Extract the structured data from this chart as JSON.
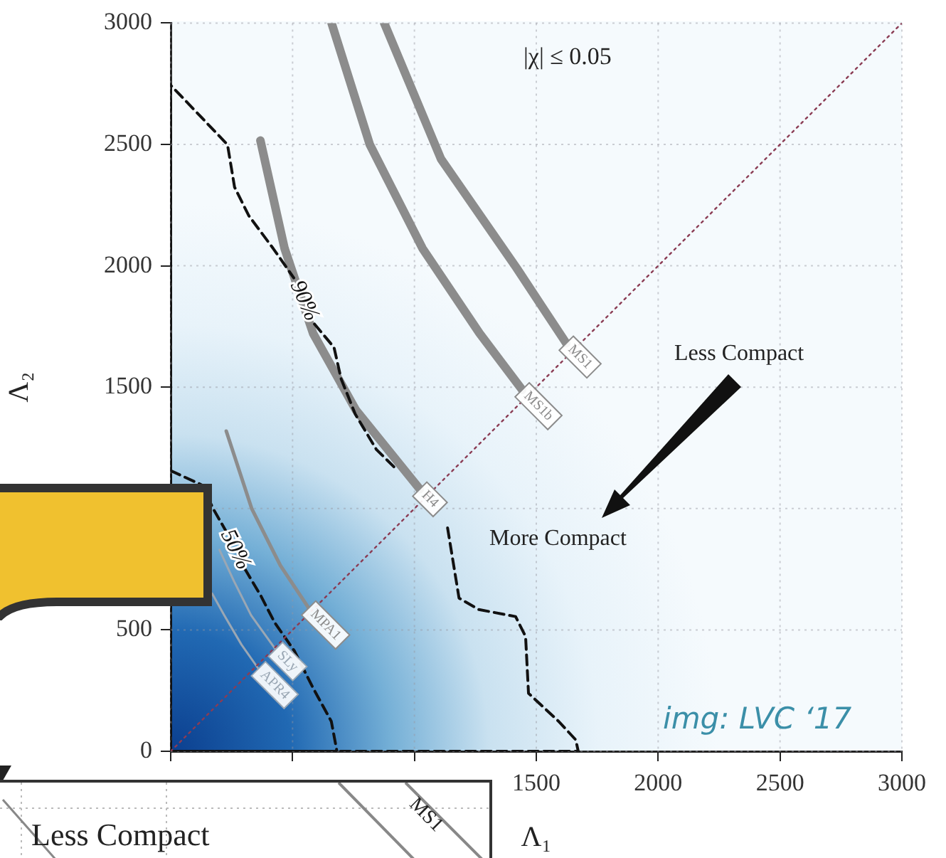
{
  "chart_data": {
    "type": "line",
    "xlabel": "Λ₁",
    "ylabel": "Λ₂",
    "xlim": [
      0,
      3000
    ],
    "ylim": [
      0,
      3000
    ],
    "xticks": [
      {
        "value": 0,
        "label": null
      },
      {
        "value": 500,
        "label": null
      },
      {
        "value": 1000,
        "label": null
      },
      1500,
      2000,
      2500,
      3000
    ],
    "yticks": [
      0,
      500,
      {
        "value": 1000,
        "label": null
      },
      1500,
      2000,
      2500,
      3000
    ],
    "grid": true,
    "legend": false,
    "marker": "none",
    "series": [
      {
        "color": "#8b3c54",
        "line_style": "dotted",
        "x": [
          0,
          3000
        ],
        "values": [
          0,
          3000
        ]
      },
      {
        "name": "90%",
        "color": "#111111",
        "line_style": "dashed",
        "x": [
          0,
          0,
          233,
          262,
          320,
          420,
          505,
          null,
          590,
          670,
          699,
          757,
          844,
          932,
          null,
          1136,
          1183,
          1264,
          1415,
          1456,
          1468,
          1592,
          1662,
          1672,
          0
        ],
        "values": [
          0,
          2744,
          2499,
          2324,
          2207,
          2072,
          1950,
          null,
          1760,
          1664,
          1535,
          1389,
          1243,
          1156,
          null,
          920,
          631,
          584,
          555,
          473,
          239,
          123,
          47,
          0,
          0
        ]
      },
      {
        "name": "50%",
        "color": "#111111",
        "line_style": "dashed",
        "x": [
          0,
          128,
          175,
          225,
          null,
          305,
          370,
          426,
          507,
          583,
          659,
          682,
          0
        ],
        "values": [
          1156,
          1097,
          998,
          910,
          null,
          750,
          640,
          531,
          414,
          263,
          123,
          0,
          0
        ]
      },
      {
        "name": "MS1",
        "color": "#8c8c8c",
        "line_style": "solid",
        "x": [
          876,
          1109,
          1419,
          1623
        ],
        "values": [
          3000,
          2440,
          1991,
          1681
        ]
      },
      {
        "name": "MS1b",
        "color": "#8c8c8c",
        "line_style": "solid",
        "x": [
          660,
          817,
          1033,
          1267,
          1442
        ],
        "values": [
          3000,
          2499,
          2072,
          1722,
          1489
        ]
      },
      {
        "name": "H4",
        "color": "#8c8c8c",
        "line_style": "solid",
        "x": [
          368,
          467,
          584,
          759,
          1022
        ],
        "values": [
          2516,
          2072,
          1722,
          1407,
          1080
        ]
      },
      {
        "name": "MPA1",
        "color": "#8c8c8c",
        "line_style": "solid",
        "x": [
          228,
          333,
          450,
          566
        ],
        "values": [
          1319,
          998,
          765,
          590
        ]
      },
      {
        "name": "SLy",
        "color": "#9aa7b4",
        "line_style": "solid",
        "x": [
          200,
          260,
          330,
          430
        ],
        "values": [
          830,
          700,
          560,
          420
        ]
      },
      {
        "name": "APR4",
        "color": "#9aa7b4",
        "line_style": "solid",
        "x": [
          170,
          220,
          290,
          360
        ],
        "values": [
          650,
          560,
          440,
          340
        ]
      }
    ],
    "annotations": [
      "|χ| ≤ 0.05",
      "Less Compact",
      "More Compact",
      "img: LVC ‘17",
      "Less Compact",
      "MS1"
    ]
  }
}
